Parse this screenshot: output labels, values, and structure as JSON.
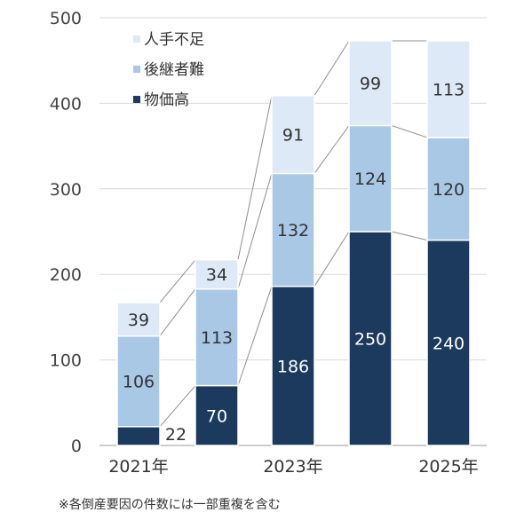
{
  "chart_data": {
    "type": "bar",
    "stacked": true,
    "categories": [
      "",
      "",
      "",
      "",
      ""
    ],
    "x_tick_labels": [
      "2021年",
      "",
      "2023年",
      "",
      "2025年"
    ],
    "series": [
      {
        "name": "物価高",
        "values": [
          22,
          70,
          186,
          250,
          240
        ],
        "color": "#1b3a5e"
      },
      {
        "name": "後継者難",
        "values": [
          106,
          113,
          132,
          124,
          120
        ],
        "color": "#a9c8e6"
      },
      {
        "name": "人手不足",
        "values": [
          39,
          34,
          91,
          99,
          113
        ],
        "color": "#dde9f6"
      }
    ],
    "ylim": [
      0,
      500
    ],
    "yticks": [
      0,
      100,
      200,
      300,
      400,
      500
    ],
    "grid": true,
    "legend_position": "top-left",
    "connector_lines": true
  },
  "footnote": "※各倒産要因の件数には一部重複を含む"
}
